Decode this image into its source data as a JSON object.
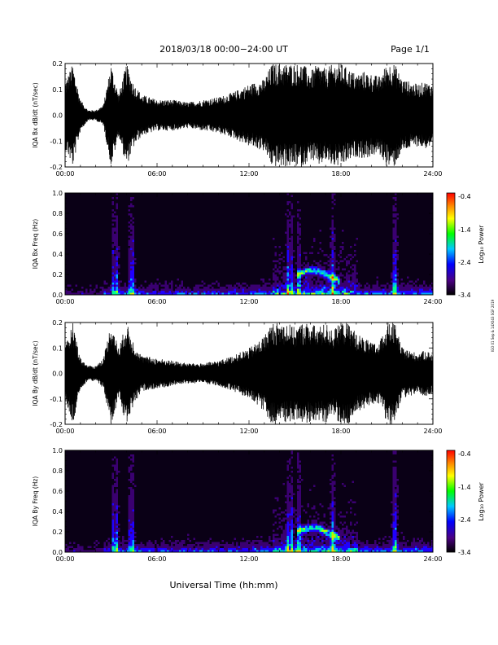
{
  "header": {
    "title": "2018/03/18   00:00−24:00 UT",
    "page": "Page 1/1"
  },
  "xlabel": "Universal Time (hh:mm)",
  "side_note": "IGO 01 Sep & 14X043 SGF 2019",
  "colorbar": {
    "label": "Log₁₀ Power",
    "ticks": [
      "-0.4",
      "-1.4",
      "-2.4",
      "-3.4"
    ],
    "range": [
      -3.4,
      -0.4
    ],
    "colors": [
      "#000000",
      "#4b0082",
      "#0000ff",
      "#00c8ff",
      "#00ff00",
      "#ffff00",
      "#ff8c00",
      "#ff0000"
    ]
  },
  "chart_data": [
    {
      "type": "line",
      "ylabel": "IQA Bx dB/dt (nT/sec)",
      "xlim": [
        0,
        24
      ],
      "ylim": [
        -0.2,
        0.2
      ],
      "x_ticks": [
        "00:00",
        "06:00",
        "12:00",
        "18:00",
        "24:00"
      ],
      "y_ticks": [
        "-0.2",
        "-0.1",
        "0.0",
        "0.1",
        "0.2"
      ],
      "y_tick_values": [
        -0.2,
        -0.1,
        0.0,
        0.1,
        0.2
      ],
      "envelope": {
        "x": [
          0,
          0.5,
          1.0,
          1.5,
          2.0,
          2.5,
          3.0,
          3.5,
          4.0,
          4.5,
          5.0,
          6.0,
          7.0,
          8.0,
          9.0,
          10.0,
          11.0,
          12.0,
          12.5,
          13.0,
          13.5,
          14.0,
          14.5,
          15.0,
          15.5,
          16.0,
          16.5,
          17.0,
          17.5,
          18.0,
          18.5,
          19.0,
          19.5,
          20.0,
          20.5,
          21.0,
          21.5,
          22.0,
          22.5,
          23.0,
          23.5,
          24.0
        ],
        "amplitude": [
          0.13,
          0.2,
          0.06,
          0.02,
          0.02,
          0.04,
          0.2,
          0.08,
          0.2,
          0.12,
          0.08,
          0.06,
          0.06,
          0.05,
          0.06,
          0.07,
          0.09,
          0.12,
          0.13,
          0.14,
          0.2,
          0.2,
          0.2,
          0.2,
          0.2,
          0.17,
          0.2,
          0.18,
          0.2,
          0.2,
          0.18,
          0.16,
          0.17,
          0.16,
          0.15,
          0.2,
          0.2,
          0.14,
          0.13,
          0.12,
          0.13,
          0.12
        ]
      }
    },
    {
      "type": "heatmap",
      "ylabel": "IQA Bx Freq (Hz)",
      "xlim": [
        0,
        24
      ],
      "ylim": [
        0,
        1.0
      ],
      "x_ticks": [
        "00:00",
        "06:00",
        "12:00",
        "18:00",
        "24:00"
      ],
      "y_ticks": [
        "0.0",
        "0.2",
        "0.4",
        "0.6",
        "0.8",
        "1.0"
      ],
      "y_tick_values": [
        0,
        0.2,
        0.4,
        0.6,
        0.8,
        1.0
      ],
      "value_range": [
        -3.4,
        -0.4
      ]
    },
    {
      "type": "line",
      "ylabel": "IQA By dB/dt (nT/sec)",
      "xlim": [
        0,
        24
      ],
      "ylim": [
        -0.2,
        0.2
      ],
      "x_ticks": [
        "00:00",
        "06:00",
        "12:00",
        "18:00",
        "24:00"
      ],
      "y_ticks": [
        "-0.2",
        "-0.1",
        "0.0",
        "0.1",
        "0.2"
      ],
      "y_tick_values": [
        -0.2,
        -0.1,
        0.0,
        0.1,
        0.2
      ],
      "envelope": {
        "x": [
          0,
          0.5,
          1.0,
          1.5,
          2.0,
          2.5,
          3.0,
          3.5,
          4.0,
          4.5,
          5.0,
          6.0,
          7.0,
          8.0,
          9.0,
          10.0,
          11.0,
          12.0,
          12.5,
          13.0,
          13.5,
          14.0,
          14.5,
          15.0,
          15.5,
          16.0,
          16.5,
          17.0,
          17.5,
          18.0,
          18.5,
          19.0,
          19.5,
          20.0,
          20.5,
          21.0,
          21.5,
          22.0,
          22.5,
          23.0,
          23.5,
          24.0
        ],
        "amplitude": [
          0.1,
          0.2,
          0.06,
          0.03,
          0.03,
          0.06,
          0.2,
          0.1,
          0.2,
          0.12,
          0.07,
          0.06,
          0.05,
          0.04,
          0.04,
          0.05,
          0.07,
          0.1,
          0.12,
          0.15,
          0.2,
          0.2,
          0.2,
          0.18,
          0.2,
          0.2,
          0.18,
          0.2,
          0.17,
          0.2,
          0.2,
          0.16,
          0.14,
          0.12,
          0.12,
          0.2,
          0.2,
          0.1,
          0.09,
          0.08,
          0.09,
          0.08
        ]
      }
    },
    {
      "type": "heatmap",
      "ylabel": "IQA By Freq (Hz)",
      "xlim": [
        0,
        24
      ],
      "ylim": [
        0,
        1.0
      ],
      "x_ticks": [
        "00:00",
        "06:00",
        "12:00",
        "18:00",
        "24:00"
      ],
      "y_ticks": [
        "0.0",
        "0.2",
        "0.4",
        "0.6",
        "0.8",
        "1.0"
      ],
      "y_tick_values": [
        0,
        0.2,
        0.4,
        0.6,
        0.8,
        1.0
      ],
      "value_range": [
        -3.4,
        -0.4
      ]
    }
  ]
}
